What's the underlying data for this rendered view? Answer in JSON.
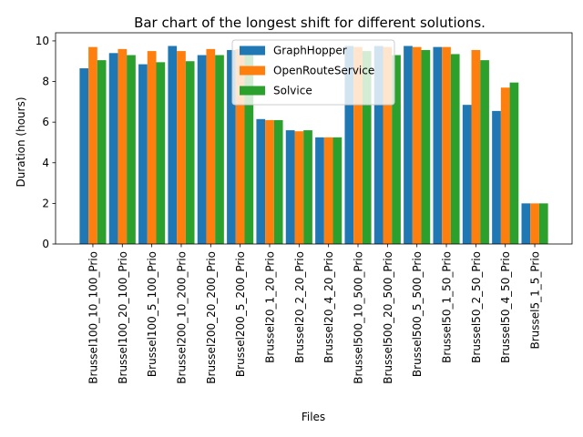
{
  "chart_data": {
    "type": "bar",
    "title": "Bar chart of the longest shift for different solutions.",
    "xlabel": "Files",
    "ylabel": "Duration (hours)",
    "ylim": [
      0,
      10.4
    ],
    "yticks": [
      "0",
      "2",
      "4",
      "6",
      "8",
      "10"
    ],
    "grid": false,
    "legend_position": "top-center",
    "categories": [
      "Brussel100_10_100_Prio",
      "Brussel100_20_100_Prio",
      "Brussel100_5_100_Prio",
      "Brussel200_10_200_Prio",
      "Brussel200_20_200_Prio",
      "Brussel200_5_200_Prio",
      "Brussel20_1_20_Prio",
      "Brussel20_2_20_Prio",
      "Brussel20_4_20_Prio",
      "Brussel500_10_500_Prio",
      "Brussel500_20_500_Prio",
      "Brussel500_5_500_Prio",
      "Brussel50_1_50_Prio",
      "Brussel50_2_50_Prio",
      "Brussel50_4_50_Prio",
      "Brussel5_1_5_Prio"
    ],
    "series": [
      {
        "name": "GraphHopper",
        "color": "#1f77b4",
        "values": [
          8.65,
          9.4,
          8.85,
          9.75,
          9.3,
          9.55,
          6.15,
          5.6,
          5.25,
          9.75,
          9.75,
          9.75,
          9.7,
          6.85,
          6.55,
          2.0
        ]
      },
      {
        "name": "OpenRouteService",
        "color": "#ff7f0e",
        "values": [
          9.7,
          9.6,
          9.5,
          9.5,
          9.6,
          9.6,
          6.1,
          5.55,
          5.25,
          9.7,
          9.7,
          9.7,
          9.7,
          9.55,
          7.7,
          2.0
        ]
      },
      {
        "name": "Solvice",
        "color": "#2ca02c",
        "values": [
          9.05,
          9.3,
          8.95,
          9.0,
          9.3,
          9.3,
          6.1,
          5.6,
          5.25,
          9.5,
          9.3,
          9.55,
          9.35,
          9.05,
          7.95,
          2.0
        ]
      }
    ]
  }
}
